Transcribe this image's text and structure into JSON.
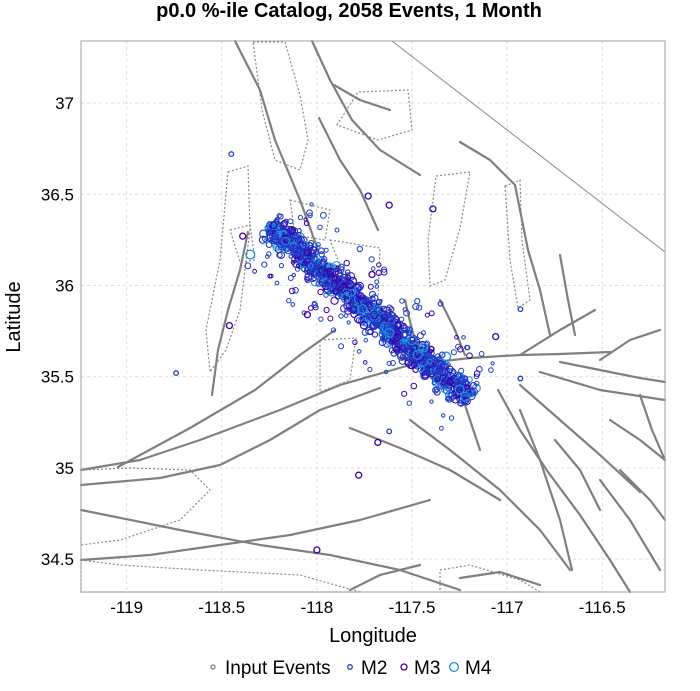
{
  "chart_data": {
    "type": "scatter",
    "title": "p0.0 %-ile Catalog, 2058 Events, 1 Month",
    "xlabel": "Longitude",
    "ylabel": "Latitude",
    "xlim": [
      -119.24,
      -116.17
    ],
    "ylim": [
      34.32,
      37.34
    ],
    "x_ticks": [
      -119,
      -118.5,
      -118,
      -117.5,
      -117,
      -116.5
    ],
    "x_tick_labels": [
      "-119",
      "-118.5",
      "-118",
      "-117.5",
      "-117",
      "-116.5"
    ],
    "y_ticks": [
      34.5,
      35,
      35.5,
      36,
      36.5,
      37
    ],
    "y_tick_labels": [
      "34.5",
      "35",
      "35.5",
      "36",
      "36.5",
      "37"
    ],
    "grid": true,
    "legend_position": "bottom",
    "series": [
      {
        "name": "Input Events",
        "color": "#7f7f7f"
      },
      {
        "name": "M2",
        "color": "#1f3fbf"
      },
      {
        "name": "M3",
        "color": "#3a00aa"
      },
      {
        "name": "M4",
        "color": "#1f8fe0"
      }
    ],
    "event_band": {
      "from": [
        -118.25,
        36.33
      ],
      "to": [
        -117.2,
        35.38
      ]
    },
    "notable_events": [
      {
        "x": -118.17,
        "y": 36.34,
        "series": "M3"
      },
      {
        "x": -118.05,
        "y": 36.18,
        "series": "M3"
      },
      {
        "x": -117.9,
        "y": 35.97,
        "series": "M3"
      },
      {
        "x": -117.85,
        "y": 35.93,
        "series": "M4"
      },
      {
        "x": -117.76,
        "y": 35.87,
        "series": "M4"
      },
      {
        "x": -117.62,
        "y": 35.74,
        "series": "M4"
      },
      {
        "x": -117.58,
        "y": 35.65,
        "series": "M3"
      },
      {
        "x": -117.5,
        "y": 35.7,
        "series": "M4"
      },
      {
        "x": -117.47,
        "y": 35.62,
        "series": "M4"
      },
      {
        "x": -117.4,
        "y": 35.65,
        "series": "M3"
      },
      {
        "x": -117.32,
        "y": 35.61,
        "series": "M4"
      },
      {
        "x": -117.3,
        "y": 35.47,
        "series": "M3"
      },
      {
        "x": -117.25,
        "y": 35.43,
        "series": "M4"
      },
      {
        "x": -117.22,
        "y": 35.39,
        "series": "M4"
      },
      {
        "x": -118.35,
        "y": 36.17,
        "series": "M4"
      },
      {
        "x": -118.39,
        "y": 36.27,
        "series": "M3"
      },
      {
        "x": -118.45,
        "y": 36.72,
        "series": "M2"
      },
      {
        "x": -118.46,
        "y": 35.78,
        "series": "M3"
      },
      {
        "x": -118.74,
        "y": 35.52,
        "series": "M2"
      },
      {
        "x": -117.62,
        "y": 36.44,
        "series": "M3"
      },
      {
        "x": -117.73,
        "y": 36.49,
        "series": "M3"
      },
      {
        "x": -117.39,
        "y": 36.42,
        "series": "M3"
      },
      {
        "x": -117.71,
        "y": 36.06,
        "series": "M3"
      },
      {
        "x": -117.44,
        "y": 35.66,
        "series": "M4"
      },
      {
        "x": -117.06,
        "y": 35.72,
        "series": "M3"
      },
      {
        "x": -116.93,
        "y": 35.87,
        "series": "M2"
      },
      {
        "x": -116.93,
        "y": 35.49,
        "series": "M2"
      },
      {
        "x": -117.35,
        "y": 35.9,
        "series": "M2"
      },
      {
        "x": -117.78,
        "y": 34.96,
        "series": "M3"
      },
      {
        "x": -118.0,
        "y": 34.55,
        "series": "M3"
      },
      {
        "x": -117.62,
        "y": 35.2,
        "series": "M2"
      },
      {
        "x": -117.68,
        "y": 35.14,
        "series": "M3"
      },
      {
        "x": -118.05,
        "y": 35.84,
        "series": "M3"
      }
    ]
  },
  "legend": {
    "items": [
      {
        "label": "Input Events",
        "marker": "input"
      },
      {
        "label": "M2",
        "marker": "m2"
      },
      {
        "label": "M3",
        "marker": "m3"
      },
      {
        "label": "M4",
        "marker": "m4"
      }
    ]
  }
}
